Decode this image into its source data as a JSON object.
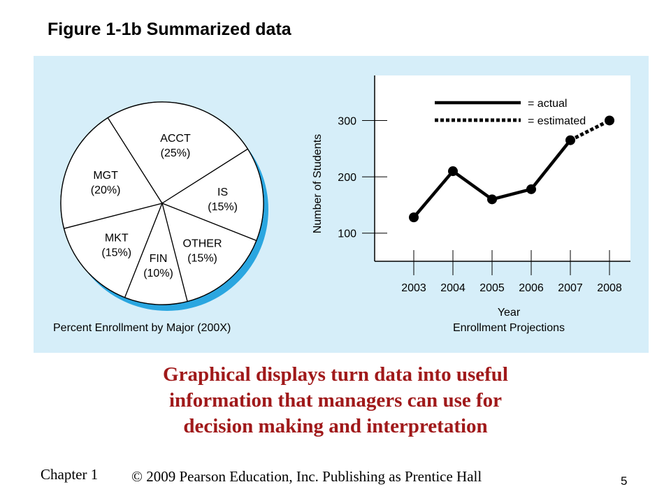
{
  "slide": {
    "title": "Figure 1-1b Summarized data",
    "caption_lines": [
      "Graphical displays turn data into useful",
      "information that managers can use for",
      "decision making and interpretation"
    ],
    "footer_chapter": "Chapter 1",
    "footer_copyright": "© 2009 Pearson Education, Inc.  Publishing as Prentice Hall",
    "page_number": "5"
  },
  "colors": {
    "panel_bg": "#d6eef9",
    "pie_shadow": "#2aa6e0",
    "caption": "#a0191a"
  },
  "chart_data": [
    {
      "type": "pie",
      "title": "Percent Enrollment by Major (200X)",
      "slices": [
        {
          "label": "MKT",
          "value": 15,
          "value_label": "(15%)"
        },
        {
          "label": "MGT",
          "value": 20,
          "value_label": "(20%)"
        },
        {
          "label": "ACCT",
          "value": 25,
          "value_label": "(25%)"
        },
        {
          "label": "IS",
          "value": 15,
          "value_label": "(15%)"
        },
        {
          "label": "OTHER",
          "value": 15,
          "value_label": "(15%)"
        },
        {
          "label": "FIN",
          "value": 10,
          "value_label": "(10%)"
        }
      ]
    },
    {
      "type": "line",
      "title": "Enrollment Projections",
      "xlabel": "Year",
      "ylabel": "Number of Students",
      "x": [
        "2003",
        "2004",
        "2005",
        "2006",
        "2007",
        "2008"
      ],
      "ylim": [
        50,
        380
      ],
      "yticks": [
        100,
        200,
        300
      ],
      "series": [
        {
          "name": "= actual",
          "style": "solid",
          "x": [
            "2003",
            "2004",
            "2005",
            "2006",
            "2007"
          ],
          "values": [
            128,
            210,
            160,
            178,
            265
          ]
        },
        {
          "name": "= estimated",
          "style": "dotted",
          "x": [
            "2007",
            "2008"
          ],
          "values": [
            265,
            300
          ]
        }
      ],
      "legend": "top-right",
      "grid": false
    }
  ]
}
